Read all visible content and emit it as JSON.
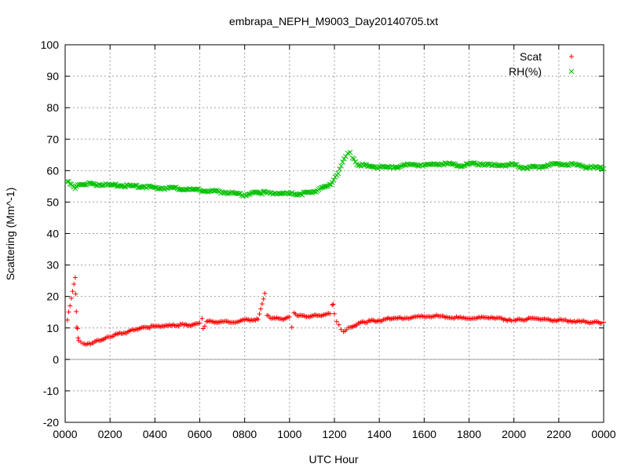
{
  "chart_data": {
    "type": "scatter",
    "title": "embrapa_NEPH_M9003_Day20140705.txt",
    "xlabel": "UTC Hour",
    "ylabel": "Scattering (Mm^-1)",
    "xlim": [
      0,
      24
    ],
    "ylim": [
      -20,
      100
    ],
    "grid": true,
    "legend_position": "top-right",
    "zero_line": true,
    "x_ticks": [
      {
        "value": 0,
        "label": "0000"
      },
      {
        "value": 2,
        "label": "0200"
      },
      {
        "value": 4,
        "label": "0400"
      },
      {
        "value": 6,
        "label": "0600"
      },
      {
        "value": 8,
        "label": "0800"
      },
      {
        "value": 10,
        "label": "1000"
      },
      {
        "value": 12,
        "label": "1200"
      },
      {
        "value": 14,
        "label": "1400"
      },
      {
        "value": 16,
        "label": "1600"
      },
      {
        "value": 18,
        "label": "1800"
      },
      {
        "value": 20,
        "label": "2000"
      },
      {
        "value": 22,
        "label": "2200"
      },
      {
        "value": 24,
        "label": "0000"
      }
    ],
    "y_ticks": [
      -20,
      -10,
      0,
      10,
      20,
      30,
      40,
      50,
      60,
      70,
      80,
      90,
      100
    ],
    "series": [
      {
        "name": "Scat",
        "color": "#ff0000",
        "marker": "plus",
        "x": [
          0.1,
          0.45,
          0.47,
          0.5,
          0.52,
          0.55,
          0.58,
          0.6,
          0.7,
          0.8,
          1.0,
          1.2,
          1.5,
          1.8,
          2.0,
          2.2,
          2.5,
          2.8,
          3.0,
          3.3,
          3.6,
          4.0,
          4.3,
          4.7,
          5.0,
          5.3,
          5.7,
          6.0,
          6.1,
          6.15,
          6.3,
          6.6,
          7.0,
          7.5,
          8.0,
          8.3,
          8.6,
          8.9,
          9.0,
          9.2,
          9.5,
          9.8,
          10.0,
          10.1,
          10.2,
          10.4,
          10.7,
          11.0,
          11.3,
          11.6,
          11.8,
          11.9,
          11.95,
          12.0,
          12.1,
          12.2,
          12.3,
          12.4,
          12.55,
          12.7,
          13.0,
          13.3,
          13.6,
          14.0,
          14.3,
          14.7,
          15.0,
          15.5,
          16.0,
          16.5,
          17.0,
          17.5,
          18.0,
          18.5,
          19.0,
          19.3,
          19.6,
          19.9,
          20.0,
          20.3,
          20.6,
          21.0,
          21.3,
          21.6,
          22.0,
          22.5,
          23.0,
          23.3,
          23.6,
          23.9,
          24.0
        ],
        "y": [
          12.5,
          26.0,
          20.8,
          15.2,
          10.2,
          9.8,
          6.8,
          6.0,
          5.5,
          5.0,
          5.0,
          5.2,
          6.0,
          6.8,
          7.2,
          7.8,
          8.2,
          8.8,
          9.5,
          9.8,
          10.2,
          10.4,
          10.6,
          10.7,
          10.8,
          11.0,
          11.0,
          11.5,
          13.0,
          9.8,
          12.0,
          12.0,
          12.0,
          11.8,
          12.5,
          12.6,
          12.7,
          21.0,
          14.0,
          13.0,
          13.0,
          13.0,
          13.5,
          10.2,
          14.8,
          13.8,
          13.6,
          13.8,
          14.0,
          14.2,
          14.5,
          17.3,
          17.5,
          14.5,
          12.0,
          11.0,
          9.5,
          8.8,
          9.5,
          10.2,
          11.0,
          12.0,
          12.2,
          12.4,
          12.8,
          13.2,
          13.0,
          13.4,
          13.6,
          13.8,
          13.5,
          13.2,
          13.0,
          13.2,
          13.4,
          13.2,
          12.8,
          12.2,
          12.5,
          12.6,
          12.8,
          13.0,
          12.8,
          12.5,
          12.5,
          12.3,
          12.0,
          11.8,
          12.0,
          11.5,
          11.8
        ]
      },
      {
        "name": "RH(%)",
        "color": "#00c000",
        "marker": "cross",
        "x": [
          0.1,
          0.45,
          0.5,
          0.7,
          1.0,
          1.5,
          2.0,
          2.5,
          3.0,
          3.5,
          4.0,
          4.5,
          5.0,
          5.5,
          6.0,
          6.5,
          7.0,
          7.5,
          8.0,
          8.3,
          8.6,
          9.0,
          9.5,
          10.0,
          10.5,
          11.0,
          11.3,
          11.6,
          11.9,
          12.1,
          12.3,
          12.5,
          12.6,
          12.7,
          12.8,
          13.0,
          13.5,
          14.0,
          14.5,
          15.0,
          15.5,
          16.0,
          16.5,
          17.0,
          17.5,
          18.0,
          18.5,
          19.0,
          19.5,
          20.0,
          20.5,
          21.0,
          21.5,
          22.0,
          22.5,
          23.0,
          23.5,
          24.0
        ],
        "y": [
          56.5,
          54.3,
          55.0,
          55.6,
          55.8,
          55.6,
          55.4,
          55.2,
          55.1,
          55.0,
          54.6,
          54.5,
          54.3,
          54.0,
          53.8,
          53.5,
          53.2,
          52.9,
          52.3,
          52.9,
          53.0,
          52.9,
          52.8,
          52.6,
          52.6,
          53.0,
          54.0,
          55.0,
          56.2,
          58.5,
          61.5,
          64.5,
          65.5,
          65.8,
          64.0,
          62.0,
          61.4,
          61.2,
          61.0,
          61.5,
          62.0,
          61.8,
          62.0,
          62.2,
          61.5,
          62.0,
          62.2,
          61.6,
          61.8,
          61.8,
          61.0,
          61.2,
          61.8,
          62.2,
          62.0,
          61.5,
          61.0,
          60.6
        ]
      }
    ]
  }
}
